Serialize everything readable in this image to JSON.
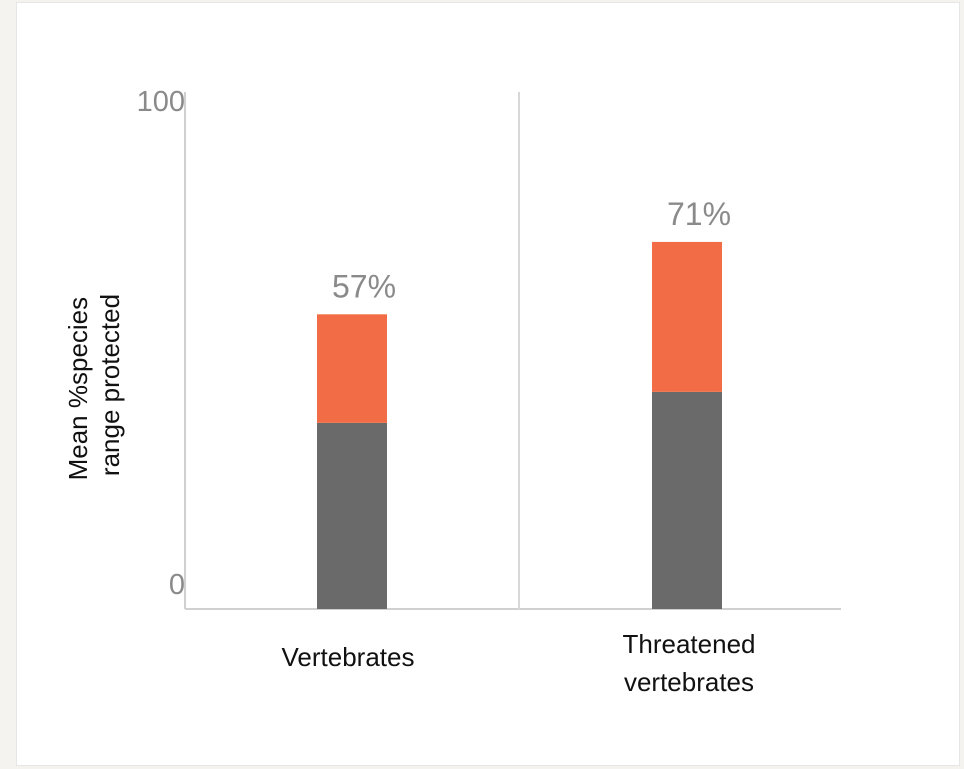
{
  "chart_data": {
    "type": "bar",
    "stacked": true,
    "categories": [
      [
        "Vertebrates"
      ],
      [
        "Threatened",
        "vertebrates"
      ]
    ],
    "series": [
      {
        "values": [
          36,
          42
        ],
        "color": "#6a6a6a"
      },
      {
        "values": [
          21,
          29
        ],
        "color": "#f26d45"
      }
    ],
    "totals": [
      57,
      71
    ],
    "total_labels": [
      "57%",
      "71%"
    ],
    "ylabel": [
      "Mean %species",
      "range protected"
    ],
    "ylim": [
      0,
      100
    ],
    "y_ticks": [
      {
        "value": 0,
        "label": "0"
      },
      {
        "value": 100,
        "label": "100"
      }
    ],
    "grid": false
  }
}
